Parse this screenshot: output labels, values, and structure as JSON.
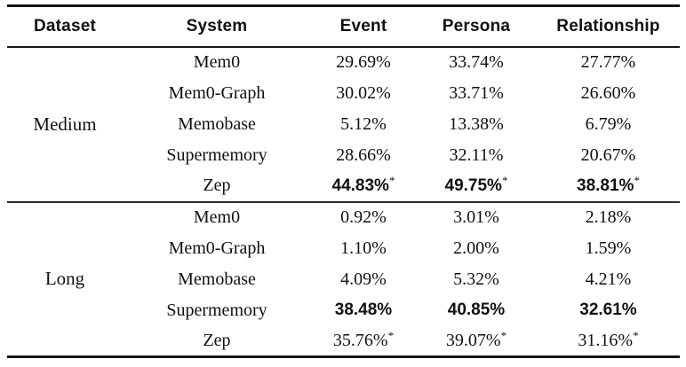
{
  "table": {
    "star_mark": "*",
    "columns": {
      "dataset": "Dataset",
      "system": "System",
      "event": "Event",
      "persona": "Persona",
      "relationship": "Relationship"
    },
    "groups": [
      {
        "dataset": "Medium",
        "rows": [
          {
            "system": "Mem0",
            "event": "29.69%",
            "persona": "33.74%",
            "relationship": "27.77%",
            "bold": false,
            "star": false
          },
          {
            "system": "Mem0-Graph",
            "event": "30.02%",
            "persona": "33.71%",
            "relationship": "26.60%",
            "bold": false,
            "star": false
          },
          {
            "system": "Memobase",
            "event": "5.12%",
            "persona": "13.38%",
            "relationship": "6.79%",
            "bold": false,
            "star": false
          },
          {
            "system": "Supermemory",
            "event": "28.66%",
            "persona": "32.11%",
            "relationship": "20.67%",
            "bold": false,
            "star": false
          },
          {
            "system": "Zep",
            "event": "44.83%",
            "persona": "49.75%",
            "relationship": "38.81%",
            "bold": true,
            "star": true
          }
        ]
      },
      {
        "dataset": "Long",
        "rows": [
          {
            "system": "Mem0",
            "event": "0.92%",
            "persona": "3.01%",
            "relationship": "2.18%",
            "bold": false,
            "star": false
          },
          {
            "system": "Mem0-Graph",
            "event": "1.10%",
            "persona": "2.00%",
            "relationship": "1.59%",
            "bold": false,
            "star": false
          },
          {
            "system": "Memobase",
            "event": "4.09%",
            "persona": "5.32%",
            "relationship": "4.21%",
            "bold": false,
            "star": false
          },
          {
            "system": "Supermemory",
            "event": "38.48%",
            "persona": "40.85%",
            "relationship": "32.61%",
            "bold": true,
            "star": false
          },
          {
            "system": "Zep",
            "event": "35.76%",
            "persona": "39.07%",
            "relationship": "31.16%",
            "bold": false,
            "star": true
          }
        ]
      }
    ]
  }
}
